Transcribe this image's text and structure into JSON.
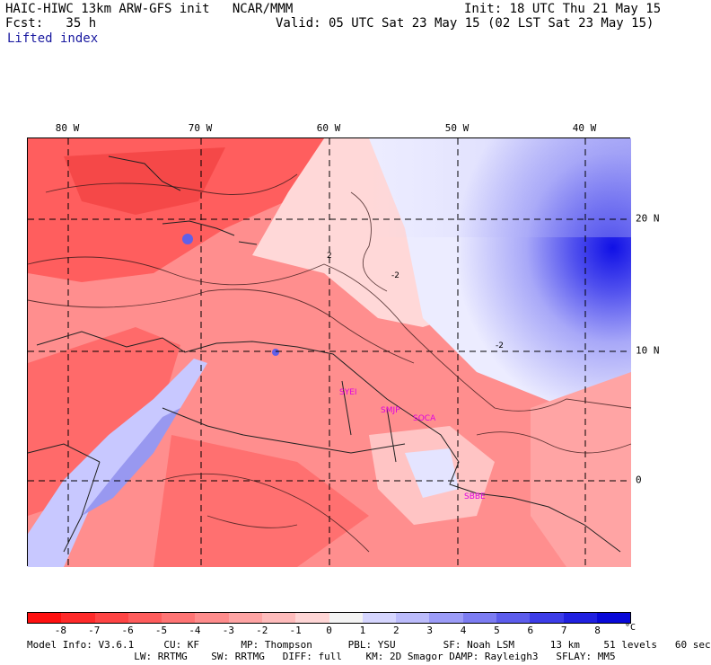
{
  "header": {
    "line1_left": "HAIC-HIWC 13km ARW-GFS init   NCAR/MMM",
    "line1_right": "Init: 18 UTC Thu 21 May 15",
    "line2_left": "Fcst:   35 h",
    "line2_right": "Valid: 05 UTC Sat 23 May 15 (02 LST Sat 23 May 15)",
    "field_name": "Lifted index"
  },
  "map": {
    "longitude_labels": [
      "80 W",
      "70 W",
      "60 W",
      "50 W",
      "40 W"
    ],
    "latitude_labels": [
      "20 N",
      "10 N",
      "0"
    ],
    "stations": [
      "SYEI",
      "SMJP",
      "SOCA",
      "SBBE"
    ],
    "contour_labels": [
      "-2",
      "-2",
      "2"
    ]
  },
  "colorbar": {
    "tick_labels": [
      "-8",
      "-7",
      "-6",
      "-5",
      "-4",
      "-3",
      "-2",
      "-1",
      "0",
      "1",
      "2",
      "3",
      "4",
      "5",
      "6",
      "7",
      "8"
    ],
    "unit": "°C",
    "colors": [
      "#ff1010",
      "#ff2a2a",
      "#ff4444",
      "#ff5c5c",
      "#ff7474",
      "#ff8c8c",
      "#ffa4a4",
      "#ffbcbc",
      "#ffd6d6",
      "#f4f4f4",
      "#d6d6ff",
      "#bcbcfc",
      "#9c9cf8",
      "#7c7cf2",
      "#5c5cec",
      "#3c3ce8",
      "#2020e0",
      "#0808d8"
    ]
  },
  "footer": {
    "line1": "Model Info: V3.6.1     CU: KF       MP: Thompson      PBL: YSU        SF: Noah LSM      13 km    51 levels   60 sec",
    "line2": "                  LW: RRTMG    SW: RRTMG   DIFF: full    KM: 2D Smagor DAMP: Rayleigh3   SFLAY: MM5"
  }
}
